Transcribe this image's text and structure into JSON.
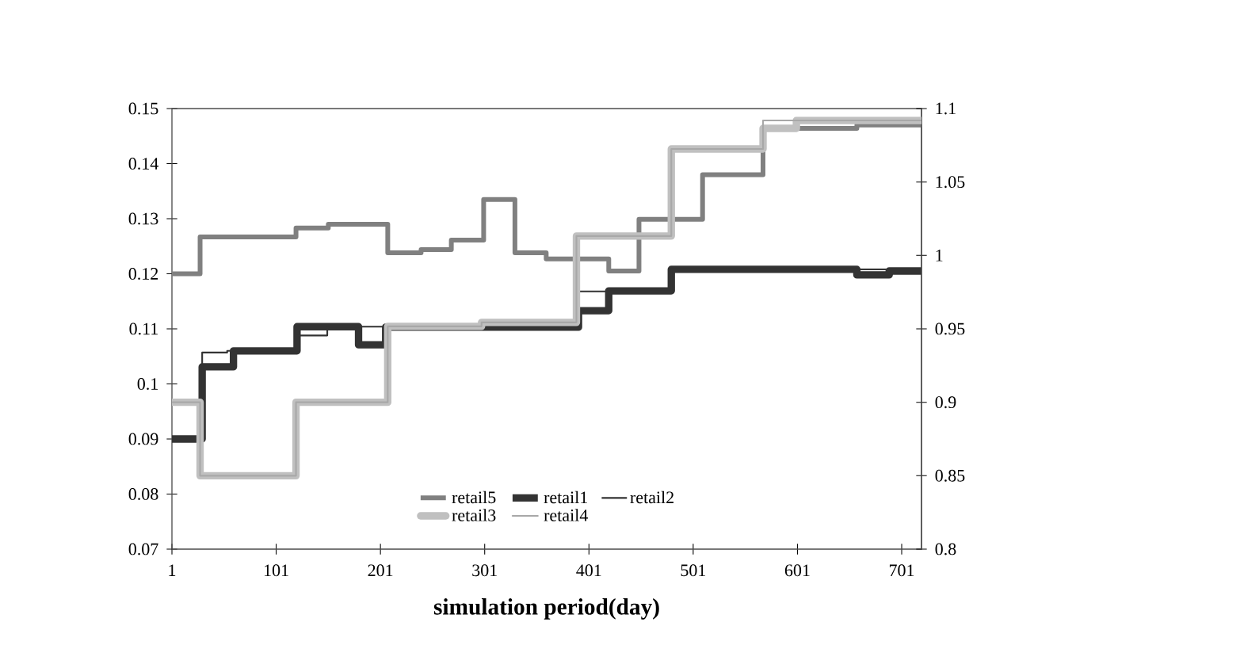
{
  "chart_data": {
    "type": "step",
    "xlabel": "simulation period(day)",
    "xlim": [
      1,
      720
    ],
    "xticks": [
      1,
      101,
      201,
      301,
      401,
      501,
      601,
      701
    ],
    "ylim": [
      0.07,
      0.15
    ],
    "yticks": [
      0.07,
      0.08,
      0.09,
      0.1,
      0.11,
      0.12,
      0.13,
      0.14,
      0.15
    ],
    "y2lim": [
      0.8,
      1.1
    ],
    "y2ticks": [
      0.8,
      0.85,
      0.9,
      0.95,
      1,
      1.05,
      1.1
    ],
    "legend": "bottom",
    "series": [
      {
        "name": "retail5",
        "color": "#808080",
        "x": [
          1,
          28,
          120,
          151,
          208,
          240,
          269,
          300,
          330,
          360,
          420,
          449,
          510,
          568,
          658,
          720
        ],
        "values": [
          0.12,
          0.1267,
          0.1283,
          0.129,
          0.1238,
          0.1244,
          0.1261,
          0.1335,
          0.1238,
          0.1227,
          0.1205,
          0.1299,
          0.138,
          0.1464,
          0.147,
          0.147
        ]
      },
      {
        "name": "retail1",
        "color": "#333333",
        "x": [
          1,
          30,
          60,
          121,
          180,
          206,
          391,
          420,
          480,
          658,
          689,
          720
        ],
        "values": [
          0.09,
          0.1031,
          0.106,
          0.1104,
          0.1071,
          0.1103,
          0.1133,
          0.1169,
          0.1208,
          0.1198,
          0.1205,
          0.1205
        ]
      },
      {
        "name": "retail2",
        "color": "#333333",
        "x": [
          1,
          30,
          54,
          121,
          150,
          391,
          480,
          720
        ],
        "values": [
          0.09,
          0.1057,
          0.106,
          0.1088,
          0.1104,
          0.1168,
          0.1208,
          0.1208
        ]
      },
      {
        "name": "retail3",
        "color": "#c0c0c0",
        "axis": "y2",
        "x": [
          1,
          28,
          120,
          208,
          298,
          389,
          480,
          568,
          600,
          720
        ],
        "values": [
          0.9,
          0.85,
          0.9,
          0.9517,
          0.9544,
          1.0132,
          1.0725,
          1.0865,
          1.0919,
          1.0919
        ]
      },
      {
        "name": "retail4",
        "color": "#a8a8a8",
        "axis": "y2",
        "x": [
          1,
          28,
          120,
          208,
          298,
          389,
          480,
          568,
          720
        ],
        "values": [
          0.9,
          0.85,
          0.9,
          0.9517,
          0.9544,
          1.0132,
          1.0725,
          1.0919,
          1.0919
        ]
      }
    ]
  }
}
